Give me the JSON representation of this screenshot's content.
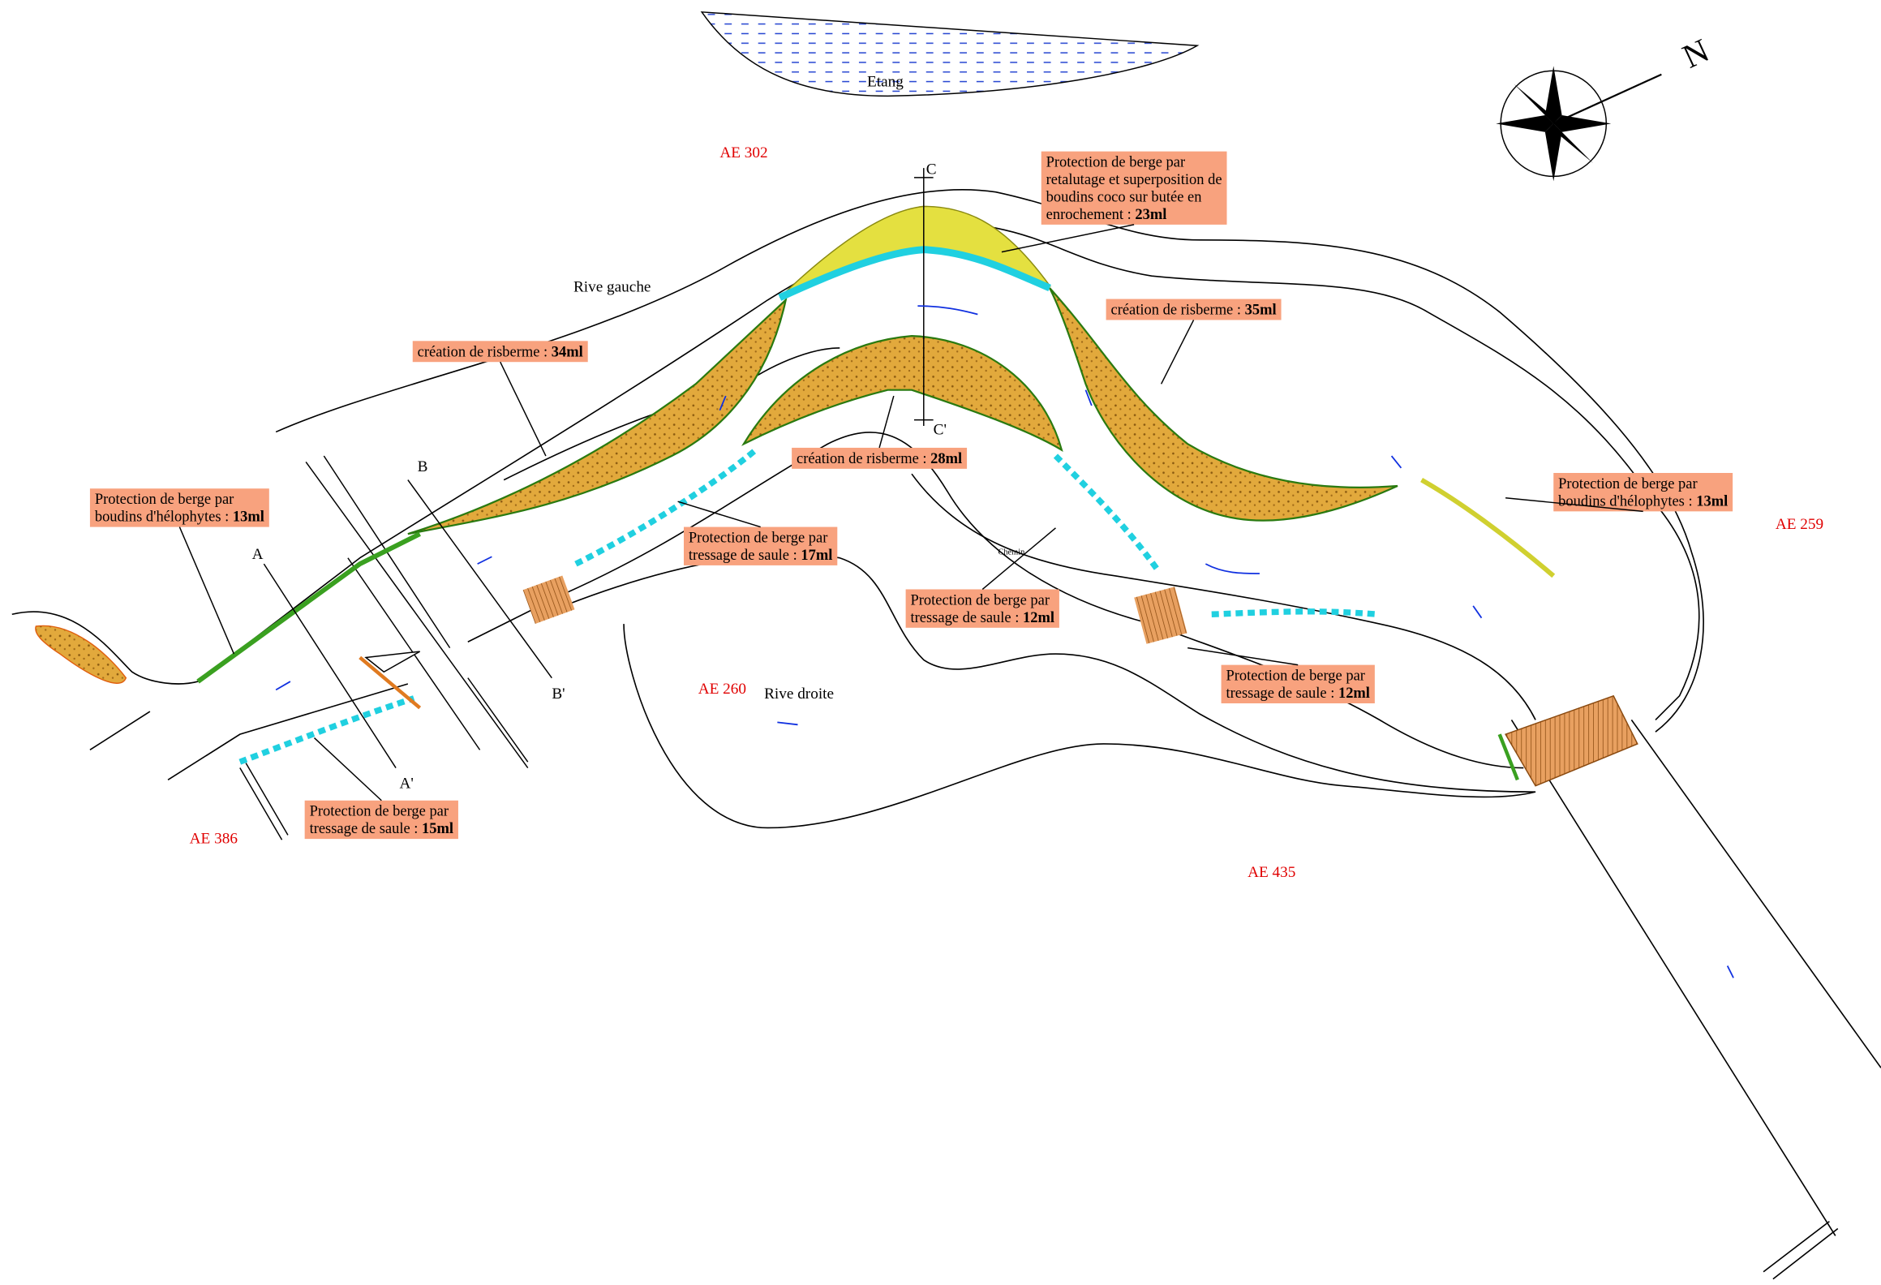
{
  "map": {
    "pond": "Etang",
    "north": "N",
    "parcels": [
      "AE 302",
      "AE 259",
      "AE 260",
      "AE 386",
      "AE 435"
    ],
    "banks": [
      "Rive gauche",
      "Rive droite"
    ],
    "path": "Chemin",
    "sections": [
      "A",
      "A'",
      "B",
      "B'",
      "C",
      "C'"
    ],
    "labels": [
      {
        "lines": [
          "Protection de berge par",
          "retalutage et superposition de",
          "boudins coco sur butée en",
          "enrochement : "
        ],
        "measure": "23ml"
      },
      {
        "lines": [
          "création de risberme : "
        ],
        "measure": "35ml"
      },
      {
        "lines": [
          "création de risberme : "
        ],
        "measure": "34ml"
      },
      {
        "lines": [
          "création de risberme : "
        ],
        "measure": "28ml"
      },
      {
        "lines": [
          "Protection de berge par",
          "boudins d'hélophytes : "
        ],
        "measure": "13ml"
      },
      {
        "lines": [
          "Protection de berge par",
          "tressage de saule : "
        ],
        "measure": "17ml"
      },
      {
        "lines": [
          "Protection de berge par",
          "tressage de saule : "
        ],
        "measure": "12ml"
      },
      {
        "lines": [
          "Protection de berge par",
          "tressage de saule : "
        ],
        "measure": "12ml"
      },
      {
        "lines": [
          "Protection de berge par",
          "tressage de saule : "
        ],
        "measure": "15ml"
      },
      {
        "lines": [
          "Protection de berge par",
          "boudins d'hélophytes : "
        ],
        "measure": "13ml"
      }
    ]
  }
}
